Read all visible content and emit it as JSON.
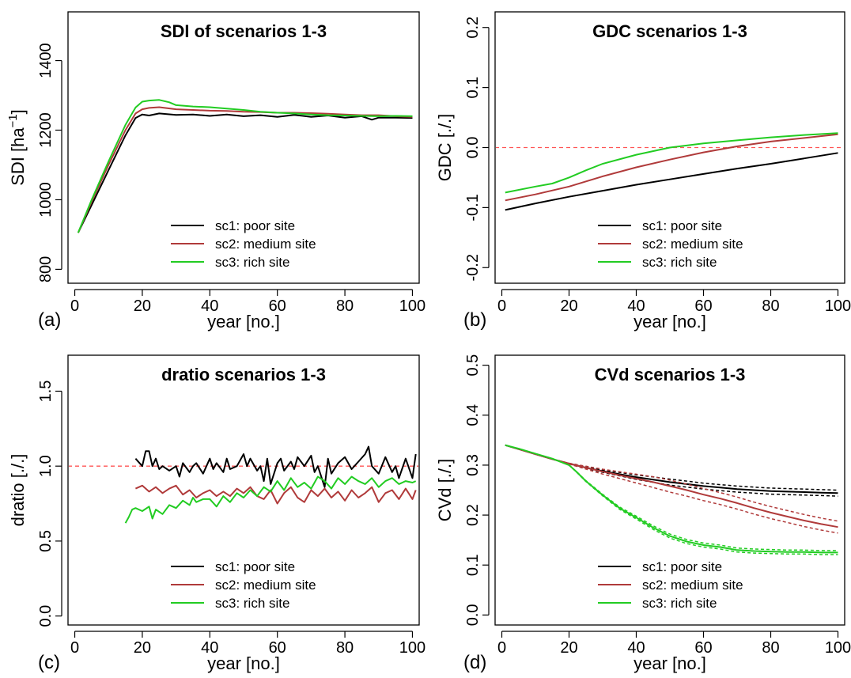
{
  "colors": {
    "sc1": "#000000",
    "sc2": "#b03a3a",
    "sc3": "#22cc22",
    "ref": "#ff5555"
  },
  "legend": [
    "sc1: poor site",
    "sc2: medium site",
    "sc3: rich site"
  ],
  "chart_data": [
    {
      "type": "line",
      "panel": "(a)",
      "title": "SDI of scenarios 1-3",
      "xlabel": "year [no.]",
      "ylabel_main": "SDI [ha",
      "ylabel_sup": "−1",
      "ylabel_end": "]",
      "xlim": [
        -2,
        102
      ],
      "ylim": [
        760,
        1540
      ],
      "xticks": [
        0,
        20,
        40,
        60,
        80,
        100
      ],
      "yticks": [
        800,
        1000,
        1200,
        1400
      ],
      "yticks_rotated": true,
      "series": [
        {
          "name": "sc1: poor site",
          "color": "sc1",
          "x": [
            1,
            5,
            10,
            15,
            18,
            20,
            22,
            25,
            30,
            35,
            40,
            45,
            50,
            55,
            60,
            65,
            70,
            75,
            80,
            85,
            88,
            90,
            95,
            100
          ],
          "y": [
            905,
            985,
            1085,
            1185,
            1235,
            1245,
            1242,
            1248,
            1244,
            1245,
            1241,
            1245,
            1240,
            1243,
            1238,
            1244,
            1238,
            1242,
            1236,
            1240,
            1230,
            1236,
            1236,
            1235
          ]
        },
        {
          "name": "sc2: medium site",
          "color": "sc2",
          "x": [
            1,
            5,
            10,
            15,
            18,
            20,
            22,
            25,
            30,
            35,
            40,
            45,
            50,
            55,
            60,
            65,
            70,
            75,
            80,
            85,
            90,
            95,
            100
          ],
          "y": [
            905,
            995,
            1100,
            1200,
            1248,
            1260,
            1264,
            1266,
            1260,
            1258,
            1256,
            1255,
            1253,
            1252,
            1250,
            1250,
            1249,
            1247,
            1245,
            1243,
            1243,
            1240,
            1238
          ]
        },
        {
          "name": "sc3: rich site",
          "color": "sc3",
          "x": [
            1,
            5,
            10,
            15,
            18,
            20,
            22,
            25,
            28,
            30,
            35,
            40,
            45,
            50,
            55,
            60,
            65,
            70,
            75,
            80,
            85,
            90,
            95,
            100
          ],
          "y": [
            905,
            1000,
            1110,
            1215,
            1265,
            1282,
            1285,
            1287,
            1280,
            1272,
            1268,
            1266,
            1262,
            1258,
            1253,
            1250,
            1248,
            1245,
            1243,
            1242,
            1241,
            1240,
            1241,
            1240
          ]
        }
      ]
    },
    {
      "type": "line",
      "panel": "(b)",
      "title": "GDC scenarios 1-3",
      "xlabel": "year [no.]",
      "ylabel": "GDC [./.]",
      "xlim": [
        -2,
        102
      ],
      "ylim": [
        -0.226,
        0.226
      ],
      "xticks": [
        0,
        20,
        40,
        60,
        80,
        100
      ],
      "yticks": [
        -0.2,
        -0.1,
        0.0,
        0.1,
        0.2
      ],
      "ytick_labels": [
        "-0.2",
        "-0.1",
        "0.0",
        "0.1",
        "0.2"
      ],
      "yticks_rotated": true,
      "hline": 0,
      "series": [
        {
          "name": "sc1: poor site",
          "color": "sc1",
          "x": [
            1,
            10,
            20,
            30,
            40,
            50,
            60,
            70,
            80,
            90,
            100
          ],
          "y": [
            -0.104,
            -0.093,
            -0.082,
            -0.072,
            -0.062,
            -0.053,
            -0.044,
            -0.035,
            -0.027,
            -0.018,
            -0.009
          ]
        },
        {
          "name": "sc2: medium site",
          "color": "sc2",
          "x": [
            1,
            10,
            20,
            30,
            40,
            50,
            60,
            70,
            80,
            90,
            100
          ],
          "y": [
            -0.088,
            -0.078,
            -0.065,
            -0.048,
            -0.033,
            -0.02,
            -0.008,
            0.002,
            0.01,
            0.016,
            0.022
          ]
        },
        {
          "name": "sc3: rich site",
          "color": "sc3",
          "x": [
            1,
            10,
            15,
            20,
            25,
            30,
            40,
            50,
            60,
            70,
            80,
            90,
            100
          ],
          "y": [
            -0.075,
            -0.065,
            -0.06,
            -0.05,
            -0.038,
            -0.027,
            -0.012,
            0.0,
            0.007,
            0.012,
            0.017,
            0.021,
            0.024
          ]
        }
      ]
    },
    {
      "type": "line",
      "panel": "(c)",
      "title": "dratio scenarios 1-3",
      "xlabel": "year [no.]",
      "ylabel": "dratio [./.]",
      "xlim": [
        -2,
        102
      ],
      "ylim": [
        -0.06,
        1.74
      ],
      "xticks": [
        0,
        20,
        40,
        60,
        80,
        100
      ],
      "yticks": [
        0.0,
        0.5,
        1.0,
        1.5
      ],
      "ytick_labels": [
        "0.0",
        "0.5",
        "1.0",
        "1.5"
      ],
      "yticks_rotated": true,
      "hline": 1.0,
      "series": [
        {
          "name": "sc1: poor site",
          "color": "sc1",
          "x": [
            18,
            20,
            21,
            22,
            23,
            24,
            25,
            26,
            28,
            30,
            31,
            32,
            34,
            35,
            36,
            38,
            40,
            41,
            42,
            44,
            45,
            46,
            48,
            50,
            51,
            52,
            54,
            55,
            56,
            57,
            58,
            60,
            61,
            62,
            64,
            65,
            66,
            68,
            70,
            71,
            72,
            74,
            75,
            76,
            78,
            80,
            82,
            84,
            86,
            87,
            88,
            90,
            92,
            94,
            95,
            96,
            98,
            100,
            101
          ],
          "y": [
            1.05,
            1.0,
            1.1,
            1.1,
            1.0,
            1.05,
            0.98,
            1.0,
            0.97,
            1.0,
            0.93,
            1.02,
            0.96,
            1.0,
            1.02,
            0.95,
            1.05,
            0.98,
            1.02,
            0.96,
            1.05,
            0.98,
            1.0,
            1.08,
            1.0,
            1.05,
            0.97,
            1.0,
            0.9,
            1.05,
            0.88,
            1.02,
            1.05,
            0.97,
            1.03,
            0.98,
            1.06,
            1.0,
            1.07,
            0.96,
            1.0,
            0.86,
            1.05,
            0.95,
            1.02,
            1.06,
            0.98,
            1.03,
            1.08,
            1.13,
            1.0,
            0.95,
            1.06,
            0.96,
            1.0,
            0.92,
            1.05,
            0.92,
            1.08
          ]
        },
        {
          "name": "sc2: medium site",
          "color": "sc2",
          "x": [
            18,
            20,
            22,
            24,
            26,
            28,
            30,
            32,
            34,
            36,
            38,
            40,
            42,
            44,
            46,
            48,
            50,
            52,
            54,
            56,
            58,
            60,
            62,
            64,
            66,
            68,
            70,
            72,
            74,
            76,
            78,
            80,
            82,
            84,
            86,
            88,
            90,
            92,
            94,
            96,
            98,
            100,
            101
          ],
          "y": [
            0.85,
            0.87,
            0.83,
            0.86,
            0.82,
            0.85,
            0.87,
            0.81,
            0.84,
            0.79,
            0.82,
            0.84,
            0.8,
            0.83,
            0.8,
            0.85,
            0.82,
            0.86,
            0.8,
            0.78,
            0.84,
            0.75,
            0.82,
            0.86,
            0.79,
            0.76,
            0.84,
            0.8,
            0.85,
            0.79,
            0.83,
            0.77,
            0.84,
            0.79,
            0.82,
            0.86,
            0.76,
            0.82,
            0.84,
            0.78,
            0.85,
            0.78,
            0.84
          ]
        },
        {
          "name": "sc3: rich site",
          "color": "sc3",
          "x": [
            15,
            16,
            17,
            18,
            20,
            22,
            23,
            24,
            26,
            28,
            30,
            32,
            34,
            35,
            36,
            38,
            40,
            42,
            44,
            46,
            48,
            50,
            52,
            54,
            56,
            58,
            60,
            62,
            64,
            66,
            68,
            70,
            72,
            74,
            76,
            78,
            80,
            82,
            84,
            86,
            88,
            90,
            92,
            94,
            96,
            98,
            100,
            101
          ],
          "y": [
            0.62,
            0.66,
            0.71,
            0.72,
            0.7,
            0.73,
            0.65,
            0.71,
            0.68,
            0.74,
            0.72,
            0.77,
            0.74,
            0.79,
            0.76,
            0.78,
            0.78,
            0.73,
            0.8,
            0.76,
            0.82,
            0.79,
            0.84,
            0.8,
            0.86,
            0.83,
            0.9,
            0.84,
            0.92,
            0.86,
            0.89,
            0.85,
            0.93,
            0.9,
            0.85,
            0.92,
            0.88,
            0.93,
            0.9,
            0.88,
            0.92,
            0.86,
            0.9,
            0.92,
            0.88,
            0.9,
            0.89,
            0.9
          ]
        }
      ]
    },
    {
      "type": "line",
      "panel": "(d)",
      "title": "CVd scenarios 1-3",
      "xlabel": "year [no.]",
      "ylabel": "CVd [./.]",
      "xlim": [
        -2,
        102
      ],
      "ylim": [
        -0.02,
        0.52
      ],
      "xticks": [
        0,
        20,
        40,
        60,
        80,
        100
      ],
      "yticks": [
        0.0,
        0.1,
        0.2,
        0.3,
        0.4,
        0.5
      ],
      "ytick_labels": [
        "0.0",
        "0.1",
        "0.2",
        "0.3",
        "0.4",
        "0.5"
      ],
      "yticks_rotated": true,
      "band_offsets": {
        "sc1": 0.006,
        "sc2": 0.012,
        "sc3": 0.004
      },
      "series": [
        {
          "name": "sc1: poor site",
          "color": "sc1",
          "x": [
            1,
            5,
            10,
            15,
            20,
            25,
            30,
            35,
            40,
            45,
            50,
            55,
            60,
            65,
            70,
            75,
            80,
            85,
            90,
            95,
            100
          ],
          "y": [
            0.34,
            0.332,
            0.322,
            0.312,
            0.303,
            0.295,
            0.288,
            0.282,
            0.276,
            0.271,
            0.266,
            0.262,
            0.258,
            0.255,
            0.252,
            0.25,
            0.248,
            0.247,
            0.246,
            0.245,
            0.244
          ]
        },
        {
          "name": "sc2: medium site",
          "color": "sc2",
          "x": [
            1,
            5,
            10,
            15,
            20,
            25,
            30,
            35,
            40,
            45,
            50,
            55,
            60,
            65,
            70,
            75,
            80,
            85,
            90,
            95,
            100
          ],
          "y": [
            0.34,
            0.332,
            0.322,
            0.312,
            0.303,
            0.295,
            0.287,
            0.28,
            0.273,
            0.266,
            0.258,
            0.25,
            0.241,
            0.233,
            0.224,
            0.214,
            0.205,
            0.197,
            0.189,
            0.182,
            0.176
          ]
        },
        {
          "name": "sc3: rich site",
          "color": "sc3",
          "x": [
            1,
            5,
            10,
            15,
            20,
            22,
            25,
            30,
            35,
            40,
            45,
            50,
            55,
            60,
            65,
            70,
            75,
            80,
            85,
            90,
            95,
            100
          ],
          "y": [
            0.34,
            0.333,
            0.323,
            0.313,
            0.3,
            0.288,
            0.268,
            0.24,
            0.214,
            0.195,
            0.175,
            0.158,
            0.147,
            0.14,
            0.136,
            0.13,
            0.128,
            0.127,
            0.126,
            0.126,
            0.125,
            0.125
          ]
        }
      ]
    }
  ]
}
